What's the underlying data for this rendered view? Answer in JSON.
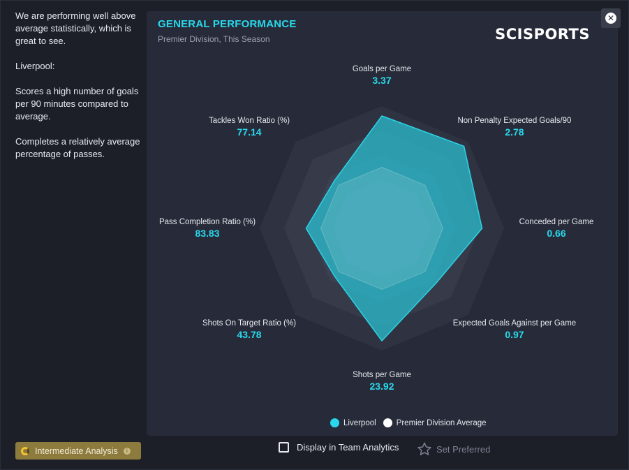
{
  "sidebar": {
    "paragraphs": [
      "We are performing well above average statistically, which is great to see.",
      "Liverpool:",
      "Scores a high number of goals per 90 minutes compared to average.",
      "Completes a relatively average percentage of passes."
    ],
    "badge_label": "Intermediate Analysis",
    "badge_icon": "info-icon"
  },
  "panel": {
    "title": "GENERAL PERFORMANCE",
    "subtitle": "Premier Division, This Season",
    "brand": "SCISPORTS",
    "close_icon": "close-icon"
  },
  "chart_data": {
    "type": "radar",
    "axes": [
      {
        "label": "Goals per Game",
        "value": "3.37"
      },
      {
        "label": "Non Penalty Expected Goals/90",
        "value": "2.78"
      },
      {
        "label": "Conceded per Game",
        "value": "0.66"
      },
      {
        "label": "Expected Goals Against per Game",
        "value": "0.97"
      },
      {
        "label": "Shots per Game",
        "value": "23.92"
      },
      {
        "label": "Shots On Target Ratio (%)",
        "value": "43.78"
      },
      {
        "label": "Pass Completion Ratio (%)",
        "value": "83.83"
      },
      {
        "label": "Tackles Won Ratio (%)",
        "value": "77.14"
      }
    ],
    "series": [
      {
        "name": "Liverpool",
        "color": "#29c4d6",
        "relative": [
          0.92,
          0.95,
          0.82,
          0.63,
          0.92,
          0.55,
          0.62,
          0.55
        ]
      },
      {
        "name": "Premier Division Average",
        "color": "#ffffff",
        "relative": [
          0.5,
          0.5,
          0.5,
          0.5,
          0.5,
          0.5,
          0.5,
          0.5
        ]
      }
    ],
    "legend": [
      {
        "name": "Liverpool",
        "color": "#29d8ec"
      },
      {
        "name": "Premier Division Average",
        "color": "#ffffff"
      }
    ]
  },
  "footer": {
    "checkbox_label": "Display in Team Analytics",
    "checkbox_checked": false,
    "preferred_label": "Set Preferred",
    "preferred_icon": "star-icon"
  }
}
